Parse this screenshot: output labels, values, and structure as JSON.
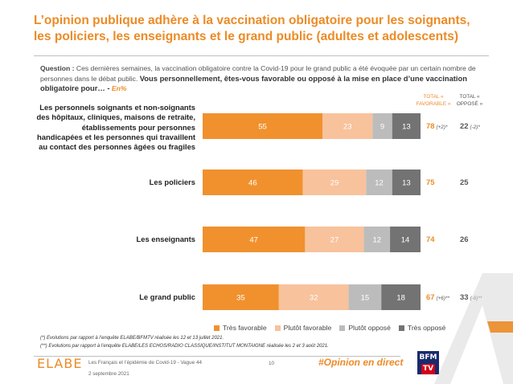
{
  "title": "L’opinion publique adhère à la vaccination obligatoire pour les soignants, les policiers, les enseignants et le grand public (adultes et adolescents)",
  "question": {
    "label": "Question :",
    "text": "Ces dernières semaines, la vaccination obligatoire contre la Covid-19 pour le grand public a été évoquée par un certain nombre de personnes dans le débat public.",
    "bold_text": "Vous personnellement, êtes-vous favorable ou opposé à la mise en place d’une vaccination obligatoire pour… -",
    "unit": "En%"
  },
  "column_headers": {
    "favorable": "TOTAL « FAVORABLE »",
    "oppose": "TOTAL « OPPOSÉ »"
  },
  "colors": {
    "tres_favorable": "#f0912e",
    "plutot_favorable": "#f8c29c",
    "plutot_oppose": "#bcbcbc",
    "tres_oppose": "#737373",
    "accent": "#ec8b26"
  },
  "chart_data": {
    "type": "bar",
    "orientation": "horizontal",
    "stacked": true,
    "unit": "%",
    "categories": [
      "Les personnels soignants et non-soignants des hôpitaux, cliniques, maisons de retraite, établissements pour personnes handicapées et les personnes qui travaillent au contact des personnes âgées ou fragiles",
      "Les policiers",
      "Les enseignants",
      "Le grand public"
    ],
    "series": [
      {
        "name": "Très favorable",
        "values": [
          55,
          46,
          47,
          35
        ]
      },
      {
        "name": "Plutôt favorable",
        "values": [
          23,
          29,
          27,
          32
        ]
      },
      {
        "name": "Plutôt opposé",
        "values": [
          9,
          12,
          12,
          15
        ]
      },
      {
        "name": "Très opposé",
        "values": [
          13,
          13,
          14,
          18
        ]
      }
    ],
    "total_favorable": [
      "78",
      "75",
      "74",
      "67"
    ],
    "total_favorable_evolution": [
      "(+2)*",
      "",
      "",
      "(+6)**"
    ],
    "total_oppose": [
      "22",
      "25",
      "26",
      "33"
    ],
    "total_oppose_evolution": [
      "(-2)*",
      "",
      "",
      "(-6)**"
    ],
    "legend_position": "bottom"
  },
  "footnotes": [
    "(*) Evolutions par rapport à l’enquête ELABE/BFMTV réalisée les 12 et 13 juillet 2021.",
    "(**) Evolutions par rapport à l’enquête ELABE/LES ECHOS/RADIO CLASSIQUE/INSTITUT MONTAIGNE réalisée les 2 et 3 août 2021."
  ],
  "footer": {
    "logo": "ELABE",
    "study": "Les Français et l’épidémie de Covid-19 - Vague 44",
    "date": "2 septembre 2021",
    "page": "10",
    "hashtag": "#Opinion en direct",
    "bfm_top": "BFM",
    "bfm_bottom": "TV"
  }
}
